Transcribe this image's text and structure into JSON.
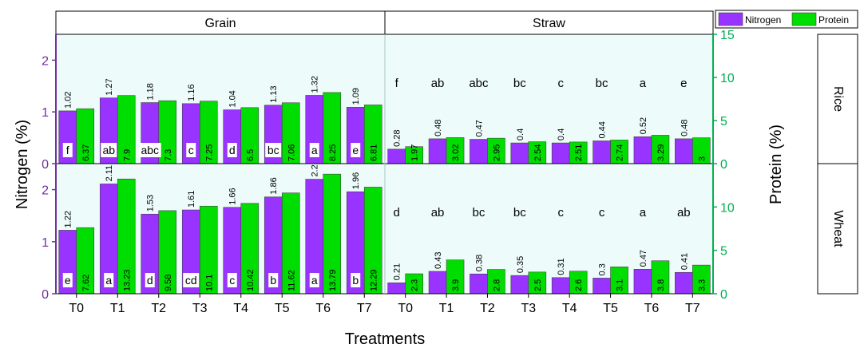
{
  "chart_data": {
    "type": "bar",
    "xlabel": "Treatments",
    "ylabel_left": "Nitrogen (%)",
    "ylabel_right": "Protein (%)",
    "columns": [
      "Grain",
      "Straw"
    ],
    "rows": [
      "Rice",
      "Wheat"
    ],
    "categories": [
      "T0",
      "T1",
      "T2",
      "T3",
      "T4",
      "T5",
      "T6",
      "T7"
    ],
    "legend": [
      {
        "name": "Nitrogen",
        "color": "#9933ff"
      },
      {
        "name": "Protein",
        "color": "#00dd00"
      }
    ],
    "axes": {
      "Rice": {
        "left_ylim": [
          0,
          2.5
        ],
        "left_ticks": [
          "0",
          "1",
          "2"
        ],
        "right_ylim": [
          0,
          15
        ],
        "right_ticks": [
          "0",
          "5",
          "10",
          "15"
        ]
      },
      "Wheat": {
        "left_ylim": [
          0,
          2.5
        ],
        "left_ticks": [
          "0",
          "1",
          "2"
        ],
        "right_ylim": [
          0,
          15
        ],
        "right_ticks": [
          "0",
          "5",
          "10"
        ]
      }
    },
    "panels": [
      {
        "row": "Rice",
        "column": "Grain",
        "nitrogen": [
          1.02,
          1.27,
          1.18,
          1.16,
          1.04,
          1.13,
          1.32,
          1.09
        ],
        "nitrogen_labels": [
          "1.02",
          "1.27",
          "1.18",
          "1.16",
          "1.04",
          "1.13",
          "1.32",
          "1.09"
        ],
        "protein": [
          6.37,
          7.9,
          7.3,
          7.25,
          6.5,
          7.06,
          8.25,
          6.81
        ],
        "protein_labels": [
          "6.37",
          "7.9",
          "7.3",
          "7.25",
          "6.5",
          "7.06",
          "8.25",
          "6.81"
        ],
        "letters": [
          "f",
          "ab",
          "abc",
          "c",
          "d",
          "bc",
          "a",
          "e"
        ]
      },
      {
        "row": "Rice",
        "column": "Straw",
        "nitrogen": [
          0.28,
          0.48,
          0.47,
          0.4,
          0.4,
          0.44,
          0.52,
          0.48
        ],
        "nitrogen_labels": [
          "0.28",
          "0.48",
          "0.47",
          "0.4",
          "0.4",
          "0.44",
          "0.52",
          "0.48"
        ],
        "protein": [
          1.97,
          3.02,
          2.95,
          2.54,
          2.51,
          2.74,
          3.29,
          3.0
        ],
        "protein_labels": [
          "1.97",
          "3.02",
          "2.95",
          "2.54",
          "2.51",
          "2.74",
          "3.29",
          "3"
        ],
        "letters": [
          "f",
          "ab",
          "abc",
          "bc",
          "c",
          "bc",
          "a",
          "e"
        ]
      },
      {
        "row": "Wheat",
        "column": "Grain",
        "nitrogen": [
          1.22,
          2.11,
          1.53,
          1.61,
          1.66,
          1.86,
          2.2,
          1.96
        ],
        "nitrogen_labels": [
          "1.22",
          "2.11",
          "1.53",
          "1.61",
          "1.66",
          "1.86",
          "2.2",
          "1.96"
        ],
        "protein": [
          7.62,
          13.23,
          9.58,
          10.1,
          10.42,
          11.62,
          13.79,
          12.29
        ],
        "protein_labels": [
          "7.62",
          "13.23",
          "9.58",
          "10.1",
          "10.42",
          "11.62",
          "13.79",
          "12.29"
        ],
        "letters": [
          "e",
          "a",
          "d",
          "cd",
          "c",
          "b",
          "a",
          "b"
        ]
      },
      {
        "row": "Wheat",
        "column": "Straw",
        "nitrogen": [
          0.21,
          0.43,
          0.38,
          0.35,
          0.31,
          0.3,
          0.47,
          0.41
        ],
        "nitrogen_labels": [
          "0.21",
          "0.43",
          "0.38",
          "0.35",
          "0.31",
          "0.3",
          "0.47",
          "0.41"
        ],
        "protein": [
          2.3,
          3.9,
          2.8,
          2.5,
          2.6,
          3.1,
          3.8,
          3.3
        ],
        "protein_labels": [
          "2.3",
          "3.9",
          "2.8",
          "2.5",
          "2.6",
          "3.1",
          "3.8",
          "3.3"
        ],
        "letters": [
          "d",
          "ab",
          "bc",
          "bc",
          "c",
          "c",
          "a",
          "ab"
        ]
      }
    ]
  }
}
